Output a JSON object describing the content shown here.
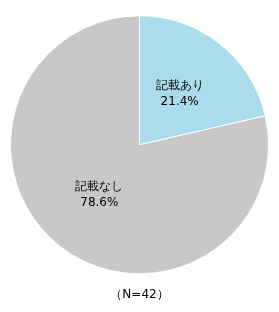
{
  "chart_data": {
    "type": "pie",
    "categories": [
      "記載あり",
      "記載なし"
    ],
    "values": [
      21.4,
      78.6
    ],
    "value_labels": [
      "21.4%",
      "78.6%"
    ],
    "colors": [
      "#aadcec",
      "#c8c8c8"
    ],
    "data_labels": true,
    "annotations": [
      "（N=42）"
    ]
  }
}
